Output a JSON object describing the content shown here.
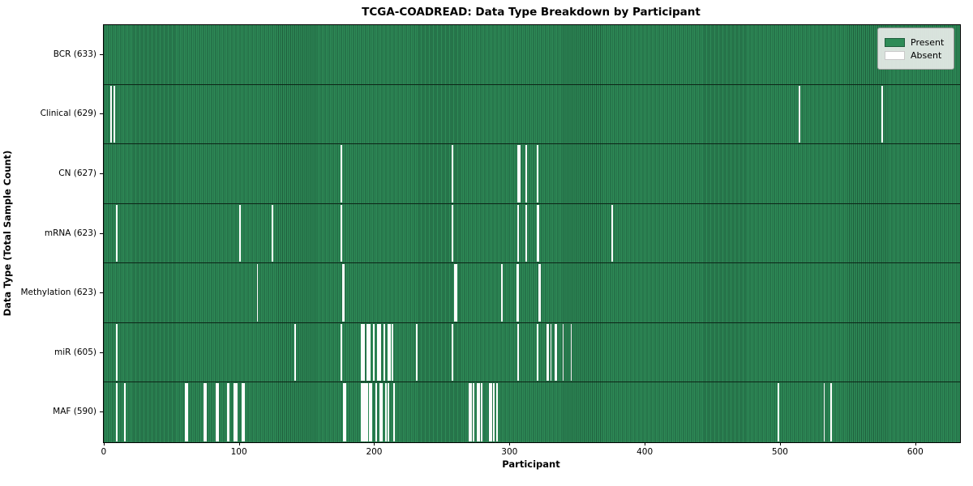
{
  "chart_data": {
    "type": "heatmap",
    "title": "TCGA-COADREAD: Data Type Breakdown by Participant",
    "xlabel": "Participant",
    "ylabel": "Data Type (Total Sample Count)",
    "n_participants": 633,
    "x_range": [
      -0.5,
      632.5
    ],
    "x_ticks": [
      0,
      100,
      200,
      300,
      400,
      500,
      600
    ],
    "grid": false,
    "legend_position": "upper right",
    "legend": [
      {
        "label": "Present",
        "color": "#2e8b57"
      },
      {
        "label": "Absent",
        "color": "#ffffff"
      }
    ],
    "colors": {
      "present": "#2e8b57",
      "present_stripe": "#1e5e3c",
      "absent": "#fdfdfd",
      "row_separator": "#0c2517",
      "axis": "#000000"
    },
    "rows": [
      {
        "name": "BCR",
        "label": "BCR (633)",
        "count": 633,
        "absent_participants": []
      },
      {
        "name": "Clinical",
        "label": "Clinical (629)",
        "count": 629,
        "absent_participants": [
          5,
          7,
          514,
          575
        ]
      },
      {
        "name": "CN",
        "label": "CN (627)",
        "count": 627,
        "absent_participants": [
          175,
          257,
          306,
          307,
          312,
          320
        ]
      },
      {
        "name": "mRNA",
        "label": "mRNA (623)",
        "count": 623,
        "absent_participants": [
          9,
          100,
          124,
          175,
          257,
          306,
          312,
          320,
          321,
          375
        ]
      },
      {
        "name": "Methylation",
        "label": "Methylation (623)",
        "count": 623,
        "absent_participants": [
          113,
          176,
          177,
          259,
          260,
          294,
          305,
          306,
          321,
          322
        ]
      },
      {
        "name": "miR",
        "label": "miR (605)",
        "count": 605,
        "absent_participants": [
          9,
          141,
          175,
          190,
          191,
          192,
          194,
          195,
          196,
          199,
          202,
          203,
          204,
          207,
          210,
          211,
          213,
          231,
          257,
          306,
          320,
          327,
          328,
          330,
          333,
          334,
          339,
          345
        ]
      },
      {
        "name": "MAF",
        "label": "MAF (590)",
        "count": 590,
        "absent_participants": [
          9,
          15,
          60,
          61,
          74,
          75,
          83,
          84,
          91,
          92,
          96,
          97,
          98,
          102,
          103,
          177,
          178,
          190,
          191,
          192,
          193,
          194,
          196,
          197,
          201,
          204,
          205,
          208,
          210,
          214,
          270,
          271,
          273,
          276,
          277,
          279,
          285,
          286,
          288,
          290,
          498,
          532,
          537
        ]
      }
    ]
  }
}
